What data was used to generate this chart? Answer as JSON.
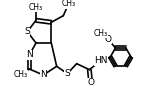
{
  "bg_color": "#ffffff",
  "bond_color": "#000000",
  "line_width": 1.2,
  "font_size": 6.5,
  "figsize": [
    1.64,
    1.09
  ],
  "dpi": 100,
  "xlim": [
    0,
    1.0
  ],
  "ylim": [
    0,
    0.75
  ]
}
